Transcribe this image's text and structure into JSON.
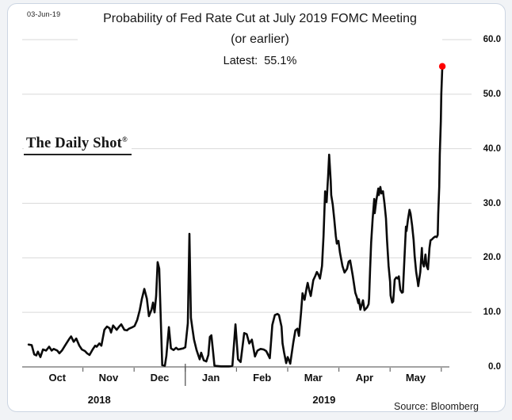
{
  "header": {
    "date": "03-Jun-19",
    "title_line1": "Probability of Fed Rate Cut at July 2019 FOMC Meeting",
    "title_line2": "(or earlier)",
    "latest": "Latest:  55.1%"
  },
  "watermark": {
    "name": "The Daily Shot",
    "reg": "®"
  },
  "footer": {
    "source": "Source: Bloomberg"
  },
  "colors": {
    "line": "#0a0a0a",
    "marker": "#ff0000",
    "grid": "#d9d9d9",
    "axis": "#a3a3a3",
    "tick": "#6b6b6b",
    "year_divider": "#4a4a4a"
  },
  "chart_data": {
    "type": "line",
    "title": "Probability of Fed Rate Cut at July 2019 FOMC Meeting (or earlier)",
    "subtitle": "Latest: 55.1%",
    "ylabel": "",
    "xlabel": "",
    "grid": true,
    "legend_position": "none",
    "ylim": [
      0,
      60
    ],
    "xlim_months": [
      -0.12,
      8.16
    ],
    "y_ticks": [
      0,
      10,
      20,
      30,
      40,
      50,
      60
    ],
    "x_months": [
      "Oct",
      "Nov",
      "Dec",
      "Jan",
      "Feb",
      "Mar",
      "Apr",
      "May"
    ],
    "x_tick_months": [
      1,
      2,
      3,
      4,
      5,
      6,
      7,
      8
    ],
    "year_divider_month": 3,
    "year_labels": [
      {
        "label": "2018",
        "center_month": 1.32
      },
      {
        "label": "2019",
        "center_month": 5.71
      }
    ],
    "latest_point": {
      "m": 8.02,
      "value": 55.1
    },
    "series": [
      {
        "name": "Probability of rate cut (%)",
        "points": [
          [
            -0.06,
            4.1
          ],
          [
            0,
            4.0
          ],
          [
            0.05,
            2.3
          ],
          [
            0.09,
            2.1
          ],
          [
            0.12,
            2.8
          ],
          [
            0.17,
            1.8
          ],
          [
            0.22,
            3.2
          ],
          [
            0.28,
            3.0
          ],
          [
            0.34,
            3.7
          ],
          [
            0.39,
            3.0
          ],
          [
            0.43,
            3.3
          ],
          [
            0.5,
            3.0
          ],
          [
            0.54,
            2.5
          ],
          [
            0.59,
            3.0
          ],
          [
            0.67,
            4.2
          ],
          [
            0.73,
            5.1
          ],
          [
            0.77,
            5.6
          ],
          [
            0.82,
            4.6
          ],
          [
            0.87,
            5.2
          ],
          [
            0.93,
            3.9
          ],
          [
            0.98,
            3.2
          ],
          [
            1.04,
            2.9
          ],
          [
            1.08,
            2.5
          ],
          [
            1.13,
            2.2
          ],
          [
            1.19,
            3.2
          ],
          [
            1.24,
            3.9
          ],
          [
            1.27,
            3.7
          ],
          [
            1.32,
            4.3
          ],
          [
            1.36,
            3.9
          ],
          [
            1.42,
            6.8
          ],
          [
            1.47,
            7.4
          ],
          [
            1.52,
            7.1
          ],
          [
            1.55,
            6.3
          ],
          [
            1.59,
            7.6
          ],
          [
            1.66,
            6.8
          ],
          [
            1.7,
            7.3
          ],
          [
            1.75,
            7.8
          ],
          [
            1.81,
            6.8
          ],
          [
            1.86,
            6.7
          ],
          [
            1.9,
            7.0
          ],
          [
            1.97,
            7.3
          ],
          [
            2.01,
            7.5
          ],
          [
            2.06,
            8.6
          ],
          [
            2.11,
            10.4
          ],
          [
            2.15,
            12.4
          ],
          [
            2.2,
            14.3
          ],
          [
            2.25,
            12.5
          ],
          [
            2.29,
            9.3
          ],
          [
            2.34,
            10.5
          ],
          [
            2.37,
            11.8
          ],
          [
            2.4,
            10.0
          ],
          [
            2.43,
            13.0
          ],
          [
            2.46,
            19.2
          ],
          [
            2.49,
            18.0
          ],
          [
            2.52,
            9.0
          ],
          [
            2.55,
            0.3
          ],
          [
            2.6,
            0.2
          ],
          [
            2.63,
            2.0
          ],
          [
            2.68,
            7.3
          ],
          [
            2.72,
            3.4
          ],
          [
            2.77,
            3.1
          ],
          [
            2.82,
            3.5
          ],
          [
            2.86,
            3.2
          ],
          [
            2.91,
            3.3
          ],
          [
            2.96,
            3.4
          ],
          [
            3.0,
            3.6
          ],
          [
            3.05,
            8.0
          ],
          [
            3.08,
            24.4
          ],
          [
            3.11,
            9.0
          ],
          [
            3.14,
            7.0
          ],
          [
            3.17,
            5.0
          ],
          [
            3.22,
            3.1
          ],
          [
            3.28,
            1.4
          ],
          [
            3.31,
            2.6
          ],
          [
            3.36,
            1.2
          ],
          [
            3.41,
            1.0
          ],
          [
            3.45,
            2.2
          ],
          [
            3.48,
            5.5
          ],
          [
            3.51,
            5.8
          ],
          [
            3.54,
            3.0
          ],
          [
            3.57,
            0.2
          ],
          [
            3.7,
            0.1
          ],
          [
            3.85,
            0.1
          ],
          [
            3.92,
            0.2
          ],
          [
            3.98,
            7.8
          ],
          [
            4.03,
            1.4
          ],
          [
            4.08,
            0.9
          ],
          [
            4.15,
            6.2
          ],
          [
            4.2,
            6.0
          ],
          [
            4.25,
            4.3
          ],
          [
            4.3,
            5.0
          ],
          [
            4.36,
            1.9
          ],
          [
            4.41,
            3.0
          ],
          [
            4.47,
            3.3
          ],
          [
            4.53,
            3.2
          ],
          [
            4.58,
            2.9
          ],
          [
            4.65,
            1.6
          ],
          [
            4.7,
            7.7
          ],
          [
            4.75,
            9.5
          ],
          [
            4.8,
            9.7
          ],
          [
            4.83,
            9.5
          ],
          [
            4.88,
            7.4
          ],
          [
            4.9,
            4.3
          ],
          [
            4.93,
            2.6
          ],
          [
            4.97,
            0.7
          ],
          [
            5.0,
            1.8
          ],
          [
            5.05,
            0.6
          ],
          [
            5.11,
            4.5
          ],
          [
            5.15,
            6.7
          ],
          [
            5.19,
            7.0
          ],
          [
            5.22,
            5.7
          ],
          [
            5.26,
            9.9
          ],
          [
            5.29,
            13.5
          ],
          [
            5.33,
            12.3
          ],
          [
            5.37,
            14.5
          ],
          [
            5.39,
            15.4
          ],
          [
            5.42,
            14.1
          ],
          [
            5.45,
            13.0
          ],
          [
            5.5,
            15.9
          ],
          [
            5.54,
            16.7
          ],
          [
            5.57,
            17.4
          ],
          [
            5.6,
            16.9
          ],
          [
            5.63,
            16.2
          ],
          [
            5.67,
            18.5
          ],
          [
            5.7,
            24.0
          ],
          [
            5.73,
            32.2
          ],
          [
            5.74,
            31.0
          ],
          [
            5.76,
            30.2
          ],
          [
            5.79,
            35.0
          ],
          [
            5.81,
            38.9
          ],
          [
            5.84,
            34.0
          ],
          [
            5.85,
            31.5
          ],
          [
            5.88,
            29.8
          ],
          [
            5.91,
            27.0
          ],
          [
            5.94,
            24.0
          ],
          [
            5.96,
            22.6
          ],
          [
            5.99,
            23.1
          ],
          [
            6.02,
            21.0
          ],
          [
            6.07,
            18.5
          ],
          [
            6.11,
            17.3
          ],
          [
            6.16,
            18.0
          ],
          [
            6.19,
            19.3
          ],
          [
            6.22,
            19.5
          ],
          [
            6.27,
            16.8
          ],
          [
            6.32,
            13.6
          ],
          [
            6.35,
            12.8
          ],
          [
            6.38,
            11.7
          ],
          [
            6.39,
            12.4
          ],
          [
            6.42,
            10.5
          ],
          [
            6.47,
            12.2
          ],
          [
            6.5,
            10.4
          ],
          [
            6.55,
            10.9
          ],
          [
            6.58,
            11.5
          ],
          [
            6.59,
            12.6
          ],
          [
            6.61,
            18.0
          ],
          [
            6.63,
            22.8
          ],
          [
            6.66,
            27.2
          ],
          [
            6.69,
            30.8
          ],
          [
            6.7,
            28.2
          ],
          [
            6.73,
            30.5
          ],
          [
            6.77,
            32.7
          ],
          [
            6.78,
            31.5
          ],
          [
            6.81,
            33.0
          ],
          [
            6.83,
            31.8
          ],
          [
            6.86,
            32.2
          ],
          [
            6.89,
            30.0
          ],
          [
            6.92,
            27.2
          ],
          [
            6.94,
            23.3
          ],
          [
            6.97,
            18.5
          ],
          [
            7.0,
            15.6
          ],
          [
            7.01,
            13.1
          ],
          [
            7.04,
            11.8
          ],
          [
            7.06,
            12.0
          ],
          [
            7.09,
            16.0
          ],
          [
            7.12,
            16.4
          ],
          [
            7.15,
            16.2
          ],
          [
            7.17,
            16.6
          ],
          [
            7.2,
            14.1
          ],
          [
            7.23,
            13.6
          ],
          [
            7.25,
            13.7
          ],
          [
            7.28,
            19.9
          ],
          [
            7.31,
            25.7
          ],
          [
            7.32,
            24.9
          ],
          [
            7.35,
            27.1
          ],
          [
            7.38,
            28.8
          ],
          [
            7.4,
            28.1
          ],
          [
            7.43,
            25.9
          ],
          [
            7.46,
            23.2
          ],
          [
            7.48,
            20.3
          ],
          [
            7.51,
            17.4
          ],
          [
            7.54,
            15.5
          ],
          [
            7.55,
            14.8
          ],
          [
            7.59,
            17.4
          ],
          [
            7.62,
            21.8
          ],
          [
            7.63,
            19.4
          ],
          [
            7.66,
            18.4
          ],
          [
            7.69,
            20.6
          ],
          [
            7.71,
            18.6
          ],
          [
            7.74,
            17.9
          ],
          [
            7.77,
            21.8
          ],
          [
            7.79,
            23.2
          ],
          [
            7.82,
            23.4
          ],
          [
            7.85,
            23.7
          ],
          [
            7.88,
            23.9
          ],
          [
            7.91,
            23.8
          ],
          [
            7.93,
            24.2
          ],
          [
            7.94,
            28.0
          ],
          [
            7.96,
            33.0
          ],
          [
            7.97,
            39.0
          ],
          [
            7.99,
            45.0
          ],
          [
            8.0,
            50.0
          ],
          [
            8.02,
            55.1
          ]
        ]
      }
    ]
  }
}
